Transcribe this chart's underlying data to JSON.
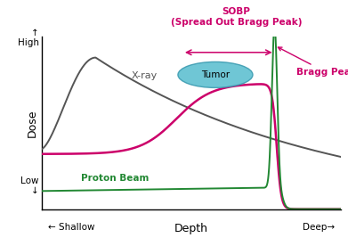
{
  "xlabel": "Depth",
  "ylabel": "Dose",
  "x_shallow_label": "← Shallow",
  "x_deep_label": "Deep→",
  "y_high_label": "↑\nHigh",
  "y_low_label": "Low\n↓",
  "xray_label": "X-ray",
  "proton_label": "Proton Beam",
  "sobp_label": "SOBP\n(Spread Out Bragg Peak)",
  "bragg_label": "Bragg Peak",
  "tumor_label": "Tumor",
  "xray_color": "#555555",
  "sobp_color": "#cc006a",
  "proton_color": "#228833",
  "sobp_text_color": "#cc006a",
  "bragg_text_color": "#cc006a",
  "proton_text_color": "#228833",
  "tumor_fill_color": "#5bbfd0",
  "tumor_edge_color": "#3a9ab0",
  "background_color": "#ffffff",
  "xlim": [
    0,
    10
  ],
  "ylim": [
    0,
    10
  ]
}
